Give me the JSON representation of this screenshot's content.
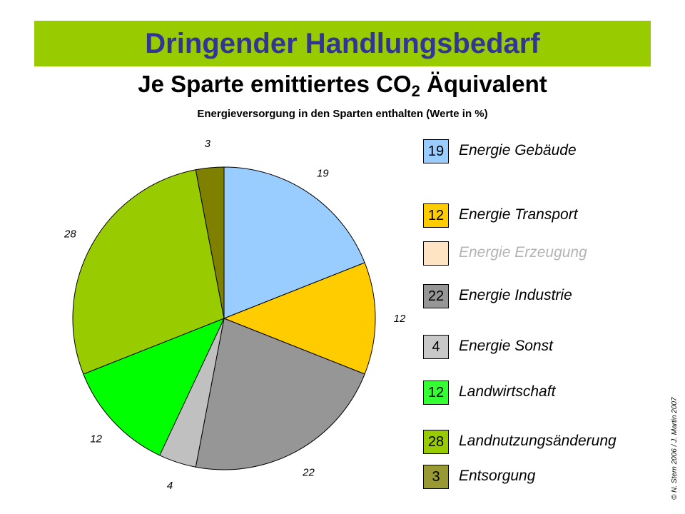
{
  "header": {
    "title": "Dringender Handlungsbedarf",
    "subtitle_prefix": "Je Sparte emittiertes CO",
    "subtitle_sub": "2",
    "subtitle_suffix": " Äquivalent",
    "caption": "Energieversorgung in den Sparten enthalten (Werte in %)"
  },
  "colors": {
    "banner": "#99cc00",
    "title_text": "#333399"
  },
  "chart_data": {
    "type": "pie",
    "title": "Je Sparte emittiertes CO2 Äquivalent",
    "subtitle": "Energieversorgung in den Sparten enthalten (Werte in %)",
    "start_angle_deg": 0,
    "direction": "clockwise",
    "slices": [
      {
        "label": "Energie Gebäude",
        "value": 19,
        "color": "#99ccff"
      },
      {
        "label": "Energie Transport",
        "value": 12,
        "color": "#ffcc00"
      },
      {
        "label": "Energie Industrie",
        "value": 22,
        "color": "#969696"
      },
      {
        "label": "Energie Sonst",
        "value": 4,
        "color": "#c0c0c0"
      },
      {
        "label": "Landwirtschaft",
        "value": 12,
        "color": "#00ff00"
      },
      {
        "label": "Landnutzungsänderung",
        "value": 28,
        "color": "#99cc00"
      },
      {
        "label": "Entsorgung",
        "value": 3,
        "color": "#808000"
      }
    ]
  },
  "legend": [
    {
      "value": "19",
      "label": "Energie Gebäude",
      "color": "#99ccff",
      "text_color": "#000000"
    },
    {
      "value": "12",
      "label": "Energie Transport",
      "color": "#ffcc00",
      "text_color": "#000000"
    },
    {
      "value": "",
      "label": "Energie Erzeugung",
      "color": "#ffe4c4",
      "text_color": "#b4b4b4"
    },
    {
      "value": "22",
      "label": "Energie Industrie",
      "color": "#969696",
      "text_color": "#000000"
    },
    {
      "value": "4",
      "label": "Energie Sonst",
      "color": "#c8c8c8",
      "text_color": "#000000"
    },
    {
      "value": "12",
      "label": "Landwirtschaft",
      "color": "#33ff33",
      "text_color": "#000000"
    },
    {
      "value": "28",
      "label": "Landnutzungsänderung",
      "color": "#99cc00",
      "text_color": "#000000"
    },
    {
      "value": "3",
      "label": "Entsorgung",
      "color": "#999933",
      "text_color": "#000000"
    }
  ],
  "footer": {
    "copyright": "© N. Stern 2006 / J. Martin 2007"
  }
}
